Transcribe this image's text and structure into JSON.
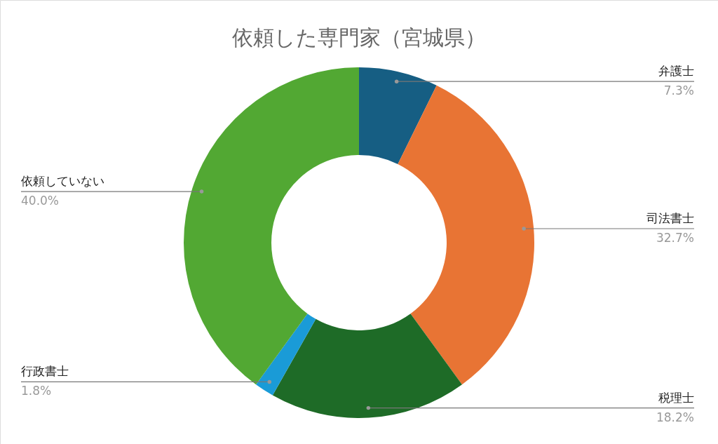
{
  "chart_data": {
    "type": "donut",
    "title": "依頼した専門家（宮城県）",
    "categories": [
      "弁護士",
      "司法書士",
      "税理士",
      "行政書士",
      "依頼していない"
    ],
    "values": [
      7.3,
      32.7,
      18.2,
      1.8,
      40.0
    ],
    "value_labels": [
      "7.3%",
      "32.7%",
      "18.2%",
      "1.8%",
      "40.0%"
    ],
    "colors": [
      "#165e83",
      "#e87434",
      "#1e6b27",
      "#1a9bd7",
      "#52a833"
    ]
  }
}
